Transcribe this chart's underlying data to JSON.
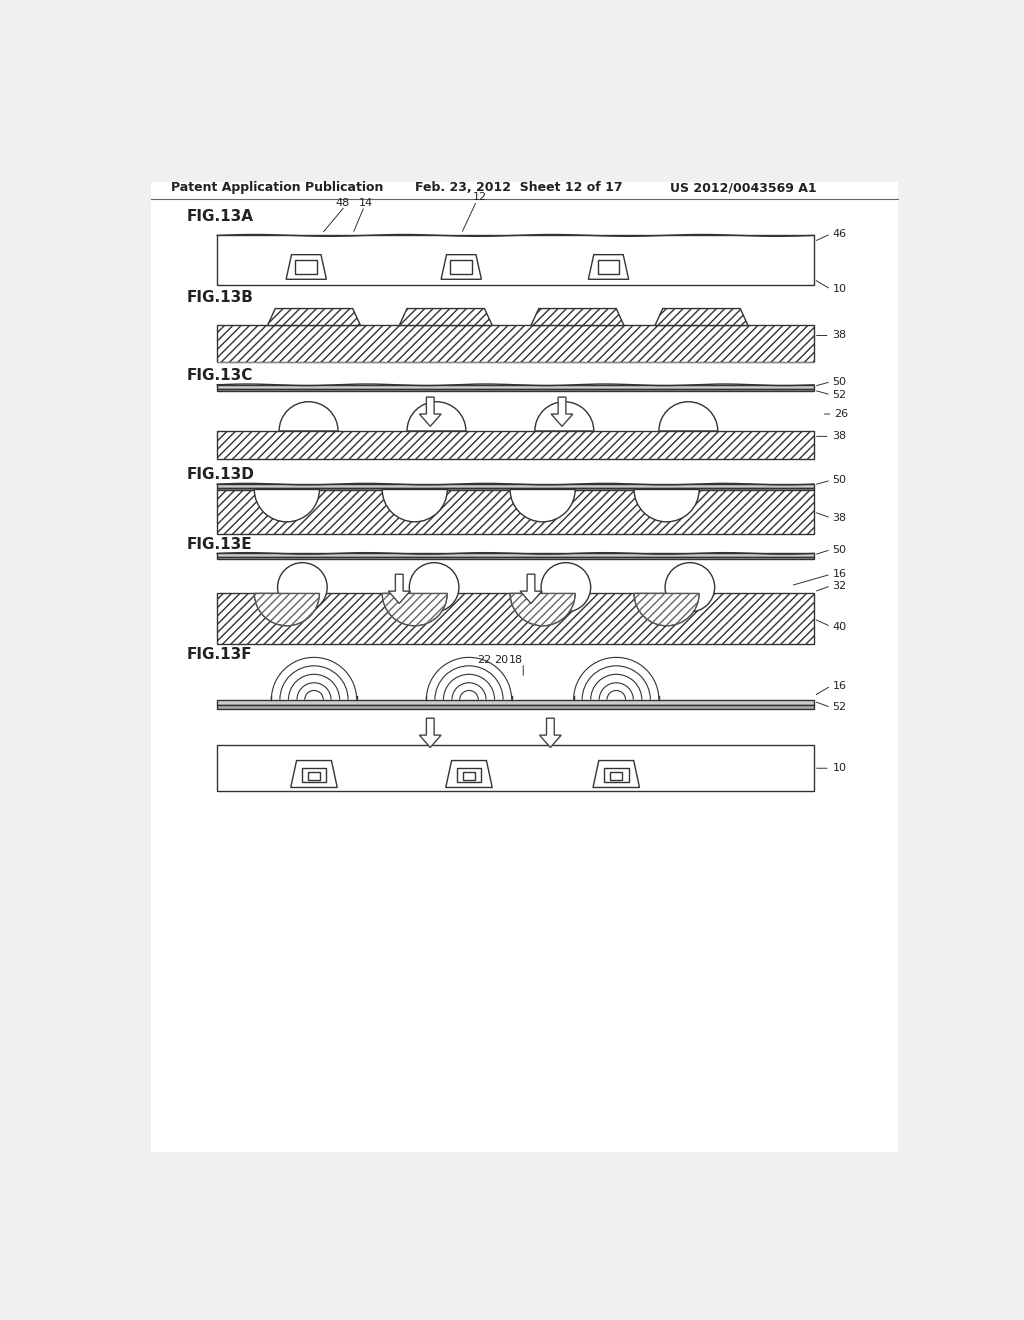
{
  "header_left": "Patent Application Publication",
  "header_mid": "Feb. 23, 2012  Sheet 12 of 17",
  "header_right": "US 2012/0043569 A1",
  "bg_color": "#f0f0f0",
  "line_color": "#333333",
  "hatch_color": "#444444",
  "arrow_color": "#555555",
  "page_bg": "#f0f0f0",
  "inner_bg": "#ffffff"
}
